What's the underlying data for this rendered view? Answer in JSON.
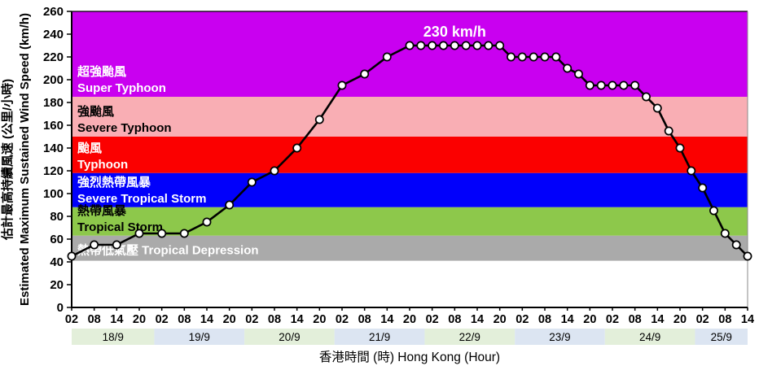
{
  "chart_data": {
    "type": "line",
    "title_annotation": "230 km/h",
    "y_axis": {
      "label_zh": "估計最高持續風速 (公里/小時)",
      "label_en": "Estimated Maximum Sustained Wind Speed (km/h)",
      "min": 0,
      "max": 260,
      "step": 20
    },
    "x_axis": {
      "label": "香港時間 (時) Hong Kong (Hour)",
      "days": [
        "18/9",
        "19/9",
        "20/9",
        "21/9",
        "22/9",
        "23/9",
        "24/9",
        "25/9"
      ],
      "tick_hours": [
        2,
        8,
        14,
        20
      ],
      "last_day_tick_hours": [
        2,
        8,
        14
      ],
      "start_hour": 2,
      "end_hour": 182,
      "day_band_colors": [
        "#E3EFDA",
        "#DCE5F2"
      ]
    },
    "bands": [
      {
        "zh": "超強颱風",
        "en": "Super Typhoon",
        "min": 185,
        "max": 260,
        "color": "#C900F0",
        "text_color": "#FFFFFF",
        "single_line": false
      },
      {
        "zh": "強颱風",
        "en": "Severe Typhoon",
        "min": 150,
        "max": 185,
        "color": "#F9AEB4",
        "text_color": "#000000",
        "single_line": false
      },
      {
        "zh": "颱風",
        "en": "Typhoon",
        "min": 118,
        "max": 150,
        "color": "#FB0000",
        "text_color": "#FFFFFF",
        "single_line": false
      },
      {
        "zh": "強烈熱帶風暴",
        "en": "Severe Tropical Storm",
        "min": 88,
        "max": 118,
        "color": "#0100FB",
        "text_color": "#FFFFFF",
        "single_line": false
      },
      {
        "zh": "熱帶風暴",
        "en": "Tropical Storm",
        "min": 63,
        "max": 88,
        "color": "#8DC84B",
        "text_color": "#000000",
        "single_line": false
      },
      {
        "zh": "熱帶低氣壓",
        "en": "Tropical Depression",
        "min": 41,
        "max": 63,
        "color": "#AAAAAA",
        "text_color": "#FFFFFF",
        "single_line": true
      }
    ],
    "line_color": "#000000",
    "marker": {
      "fill": "#FFFFFF",
      "stroke": "#000000"
    },
    "series": [
      {
        "date": "18/9",
        "hour": 2,
        "value": 45
      },
      {
        "date": "18/9",
        "hour": 8,
        "value": 55
      },
      {
        "date": "18/9",
        "hour": 14,
        "value": 55
      },
      {
        "date": "18/9",
        "hour": 20,
        "value": 65
      },
      {
        "date": "19/9",
        "hour": 2,
        "value": 65
      },
      {
        "date": "19/9",
        "hour": 8,
        "value": 65
      },
      {
        "date": "19/9",
        "hour": 14,
        "value": 75
      },
      {
        "date": "19/9",
        "hour": 20,
        "value": 90
      },
      {
        "date": "20/9",
        "hour": 2,
        "value": 110
      },
      {
        "date": "20/9",
        "hour": 8,
        "value": 120
      },
      {
        "date": "20/9",
        "hour": 14,
        "value": 140
      },
      {
        "date": "20/9",
        "hour": 20,
        "value": 165
      },
      {
        "date": "21/9",
        "hour": 2,
        "value": 195
      },
      {
        "date": "21/9",
        "hour": 8,
        "value": 205
      },
      {
        "date": "21/9",
        "hour": 14,
        "value": 220
      },
      {
        "date": "21/9",
        "hour": 20,
        "value": 230
      },
      {
        "date": "21/9",
        "hour": 23,
        "value": 230
      },
      {
        "date": "22/9",
        "hour": 2,
        "value": 230
      },
      {
        "date": "22/9",
        "hour": 5,
        "value": 230
      },
      {
        "date": "22/9",
        "hour": 8,
        "value": 230
      },
      {
        "date": "22/9",
        "hour": 11,
        "value": 230
      },
      {
        "date": "22/9",
        "hour": 14,
        "value": 230
      },
      {
        "date": "22/9",
        "hour": 17,
        "value": 230
      },
      {
        "date": "22/9",
        "hour": 20,
        "value": 230
      },
      {
        "date": "22/9",
        "hour": 23,
        "value": 220
      },
      {
        "date": "23/9",
        "hour": 2,
        "value": 220
      },
      {
        "date": "23/9",
        "hour": 5,
        "value": 220
      },
      {
        "date": "23/9",
        "hour": 8,
        "value": 220
      },
      {
        "date": "23/9",
        "hour": 11,
        "value": 220
      },
      {
        "date": "23/9",
        "hour": 14,
        "value": 210
      },
      {
        "date": "23/9",
        "hour": 17,
        "value": 205
      },
      {
        "date": "23/9",
        "hour": 20,
        "value": 195
      },
      {
        "date": "23/9",
        "hour": 23,
        "value": 195
      },
      {
        "date": "24/9",
        "hour": 2,
        "value": 195
      },
      {
        "date": "24/9",
        "hour": 5,
        "value": 195
      },
      {
        "date": "24/9",
        "hour": 8,
        "value": 195
      },
      {
        "date": "24/9",
        "hour": 11,
        "value": 185
      },
      {
        "date": "24/9",
        "hour": 14,
        "value": 175
      },
      {
        "date": "24/9",
        "hour": 17,
        "value": 155
      },
      {
        "date": "24/9",
        "hour": 20,
        "value": 140
      },
      {
        "date": "24/9",
        "hour": 23,
        "value": 120
      },
      {
        "date": "25/9",
        "hour": 2,
        "value": 105
      },
      {
        "date": "25/9",
        "hour": 5,
        "value": 85
      },
      {
        "date": "25/9",
        "hour": 8,
        "value": 65
      },
      {
        "date": "25/9",
        "hour": 11,
        "value": 55
      },
      {
        "date": "25/9",
        "hour": 14,
        "value": 45
      }
    ]
  }
}
